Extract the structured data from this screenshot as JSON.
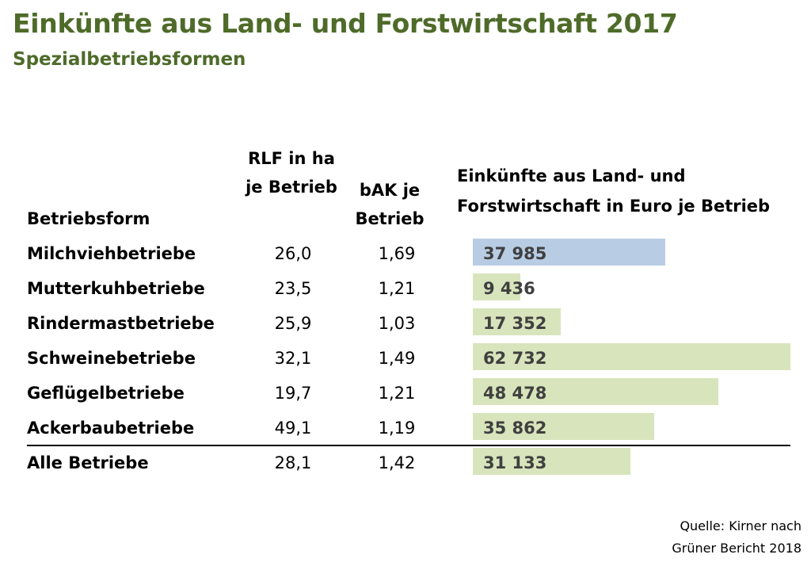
{
  "title": "Einkünfte aus Land- und Forstwirtschaft 2017",
  "subtitle": "Spezialbetriebsformen",
  "headers": {
    "form": "Betriebsform",
    "rlf": "RLF in ha je Betrieb",
    "bak": "bAK je Betrieb",
    "income": "Einkünfte aus Land- und Forstwirtschaft in Euro je Betrieb"
  },
  "colors": {
    "title": "#4e6b29",
    "bar": "#d8e4bc",
    "bar_highlight": "#b8cce4"
  },
  "chart_data": {
    "type": "table",
    "columns": [
      "Betriebsform",
      "RLF in ha je Betrieb",
      "bAK je Betrieb",
      "Einkünfte aus Land- und Forstwirtschaft in Euro je Betrieb"
    ],
    "rows": [
      {
        "name": "Milchviehbetriebe",
        "rlf": "26,0",
        "bak": "1,69",
        "income": 37985,
        "income_label": "37 985",
        "highlight": true
      },
      {
        "name": "Mutterkuhbetriebe",
        "rlf": "23,5",
        "bak": "1,21",
        "income": 9436,
        "income_label": "9 436",
        "highlight": false
      },
      {
        "name": "Rindermastbetriebe",
        "rlf": "25,9",
        "bak": "1,03",
        "income": 17352,
        "income_label": "17 352",
        "highlight": false
      },
      {
        "name": "Schweinebetriebe",
        "rlf": "32,1",
        "bak": "1,49",
        "income": 62732,
        "income_label": "62 732",
        "highlight": false
      },
      {
        "name": "Geflügelbetriebe",
        "rlf": "19,7",
        "bak": "1,21",
        "income": 48478,
        "income_label": "48 478",
        "highlight": false
      },
      {
        "name": "Ackerbaubetriebe",
        "rlf": "49,1",
        "bak": "1,19",
        "income": 35862,
        "income_label": "35 862",
        "highlight": false
      },
      {
        "name": "Alle Betriebe",
        "rlf": "28,1",
        "bak": "1,42",
        "income": 31133,
        "income_label": "31 133",
        "highlight": false
      }
    ]
  },
  "source": {
    "line1": "Quelle: Kirner nach",
    "line2": "Grüner Bericht 2018"
  }
}
